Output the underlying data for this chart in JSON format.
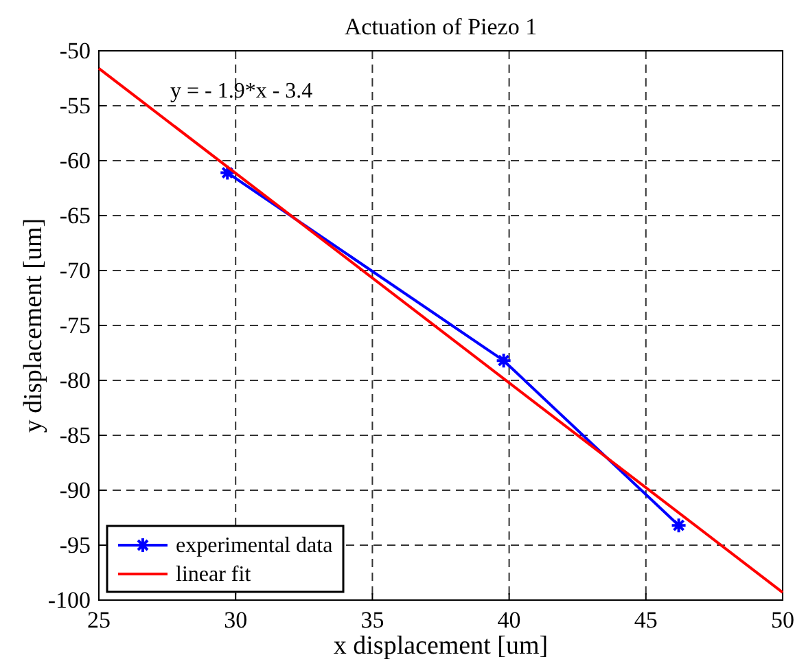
{
  "chart_data": {
    "type": "line",
    "title": "Actuation of Piezo 1",
    "xlabel": "x displacement [um]",
    "ylabel": "y displacement [um]",
    "xlim": [
      25,
      50
    ],
    "xticks": [
      25,
      30,
      35,
      40,
      45,
      50
    ],
    "ylim": [
      -100,
      -50
    ],
    "yticks": [
      -100,
      -95,
      -90,
      -85,
      -80,
      -75,
      -70,
      -65,
      -60,
      -55,
      -50
    ],
    "grid": true,
    "legend": "bottom left",
    "annotations": [
      "y = - 1.9*x - 3.4"
    ],
    "series": [
      {
        "name": "experimental data",
        "color": "#0000ff",
        "x": [
          29.7,
          39.8,
          46.2
        ],
        "values": [
          -61.1,
          -78.2,
          -93.2
        ],
        "marker": "cross"
      },
      {
        "name": "linear fit",
        "color": "#ff0000",
        "x": [
          25,
          50
        ],
        "values": [
          -51.6,
          -99.3
        ],
        "marker": "none"
      }
    ]
  }
}
